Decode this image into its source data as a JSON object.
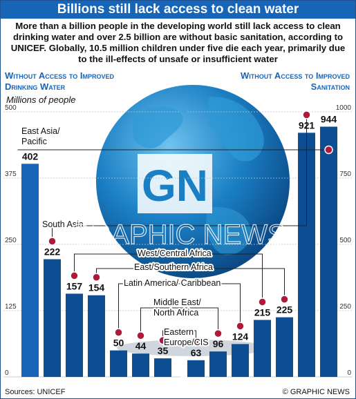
{
  "title": "Billions still lack access to clean water",
  "intro": "More than a billion people in the developing world still lack access to clean drinking water and over 2.5 billion are without basic sanitation, according to UNICEF. Globally, 10.5 million children under five die each year, primarily due to the ill-effects of unsafe or insufficient water",
  "left_header": "Without Access to Improved Drinking Water",
  "right_header": "Without Access to Improved Sanitation",
  "units": "Millions of people",
  "sources": "Sources: UNICEF",
  "credit": "© GRAPHIC NEWS",
  "watermark": "GRAPHIC NEWS",
  "logo_text": "GN",
  "colors": {
    "bar": "#1665b8",
    "dark_bar": "#0d4e92",
    "marker": "#b0193a",
    "globe": "#1b7fc4"
  },
  "chart_data": {
    "type": "bar",
    "title": "Billions still lack access to clean water",
    "ylabel": "Millions of people",
    "series": [
      {
        "name": "Without Access to Improved Drinking Water",
        "ylim": [
          0,
          500
        ],
        "ticks": [
          "500",
          "375",
          "250",
          "125",
          "0"
        ],
        "categories": [
          "East Asia/ Pacific",
          "South Asia",
          "West/Central Africa",
          "East/Southern Africa",
          "Latin America/ Caribbean",
          "Middle East/ North Africa",
          "Eastern Europe/CIS"
        ],
        "values": [
          402,
          222,
          157,
          154,
          50,
          44,
          35
        ]
      },
      {
        "name": "Without Access to Improved Sanitation",
        "ylim": [
          0,
          1000
        ],
        "ticks": [
          "1000",
          "750",
          "500",
          "250",
          "0"
        ],
        "categories": [
          "Eastern Europe/CIS",
          "Middle East/ North Africa",
          "Latin America/ Caribbean",
          "West/Central Africa",
          "East/Southern Africa",
          "South Asia",
          "East Asia/ Pacific"
        ],
        "values": [
          63,
          96,
          124,
          215,
          225,
          921,
          944
        ]
      }
    ],
    "regions": [
      {
        "key": "eap",
        "lines": [
          "East Asia/",
          "Pacific"
        ]
      },
      {
        "key": "sa",
        "lines": [
          "South Asia"
        ]
      },
      {
        "key": "wca",
        "lines": [
          "West/Central Africa"
        ]
      },
      {
        "key": "esa",
        "lines": [
          "East/Southern Africa"
        ]
      },
      {
        "key": "lac",
        "lines": [
          "Latin America/ Caribbean"
        ]
      },
      {
        "key": "mena",
        "lines": [
          "Middle East/",
          "North Africa"
        ]
      },
      {
        "key": "cis",
        "lines": [
          "Eastern",
          "Europe/CIS"
        ]
      }
    ]
  }
}
